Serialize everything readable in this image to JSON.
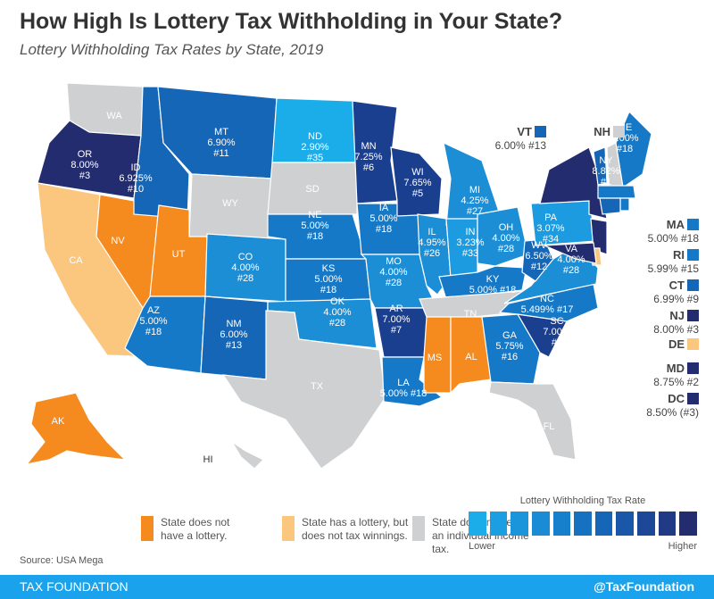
{
  "header": {
    "title": "How High Is Lottery Tax Withholding in Your State?",
    "subtitle": "Lottery Withholding Tax Rates by State, 2019"
  },
  "colors": {
    "no_lottery": "#f58a1f",
    "no_tax": "#fbc77f",
    "no_income_tax": "#cfd0d2",
    "tiers": [
      "#1badea",
      "#1d9be0",
      "#1b8ed6",
      "#1679c7",
      "#1566b6",
      "#1b3f8f",
      "#232c6e"
    ],
    "footer": "#1aa3ec"
  },
  "states": [
    {
      "code": "WA",
      "category": "no_income_tax"
    },
    {
      "code": "OR",
      "rate": "8.00%",
      "rank": "#3",
      "tier": 6
    },
    {
      "code": "CA",
      "category": "no_tax"
    },
    {
      "code": "NV",
      "category": "no_lottery"
    },
    {
      "code": "ID",
      "rate": "6.925%",
      "rank": "#10",
      "tier": 4
    },
    {
      "code": "MT",
      "rate": "6.90%",
      "rank": "#11",
      "tier": 4
    },
    {
      "code": "WY",
      "category": "no_income_tax"
    },
    {
      "code": "UT",
      "category": "no_lottery"
    },
    {
      "code": "CO",
      "rate": "4.00%",
      "rank": "#28",
      "tier": 2
    },
    {
      "code": "AZ",
      "rate": "5.00%",
      "rank": "#18",
      "tier": 3
    },
    {
      "code": "NM",
      "rate": "6.00%",
      "rank": "#13",
      "tier": 4
    },
    {
      "code": "ND",
      "rate": "2.90%",
      "rank": "#35",
      "tier": 0
    },
    {
      "code": "SD",
      "category": "no_income_tax"
    },
    {
      "code": "NE",
      "rate": "5.00%",
      "rank": "#18",
      "tier": 3
    },
    {
      "code": "KS",
      "rate": "5.00%",
      "rank": "#18",
      "tier": 3
    },
    {
      "code": "OK",
      "rate": "4.00%",
      "rank": "#28",
      "tier": 2
    },
    {
      "code": "TX",
      "category": "no_income_tax"
    },
    {
      "code": "MN",
      "rate": "7.25%",
      "rank": "#6",
      "tier": 5
    },
    {
      "code": "IA",
      "rate": "5.00%",
      "rank": "#18",
      "tier": 3
    },
    {
      "code": "MO",
      "rate": "4.00%",
      "rank": "#28",
      "tier": 2
    },
    {
      "code": "AR",
      "rate": "7.00%",
      "rank": "#7",
      "tier": 5
    },
    {
      "code": "LA",
      "rate": "5.00% #18",
      "tier": 3
    },
    {
      "code": "WI",
      "rate": "7.65%",
      "rank": "#5",
      "tier": 5
    },
    {
      "code": "IL",
      "rate": "4.95%",
      "rank": "#26",
      "tier": 2
    },
    {
      "code": "MI",
      "rate": "4.25%",
      "rank": "#27",
      "tier": 2
    },
    {
      "code": "IN",
      "rate": "3.23%",
      "rank": "#33",
      "tier": 1
    },
    {
      "code": "OH",
      "rate": "4.00%",
      "rank": "#28",
      "tier": 2
    },
    {
      "code": "KY",
      "rate": "5.00% #18",
      "tier": 3
    },
    {
      "code": "TN",
      "category": "no_income_tax"
    },
    {
      "code": "MS",
      "category": "no_lottery"
    },
    {
      "code": "AL",
      "category": "no_lottery"
    },
    {
      "code": "GA",
      "rate": "5.75%",
      "rank": "#16",
      "tier": 3
    },
    {
      "code": "FL",
      "category": "no_income_tax"
    },
    {
      "code": "SC",
      "rate": "7.00%",
      "rank": "#7",
      "tier": 5
    },
    {
      "code": "NC",
      "rate": "5.499% #17",
      "tier": 3
    },
    {
      "code": "VA",
      "rate": "4.00%",
      "rank": "#28",
      "tier": 2
    },
    {
      "code": "WV",
      "rate": "6.50%",
      "rank": "#12",
      "tier": 4
    },
    {
      "code": "PA",
      "rate": "3.07%",
      "rank": "#34",
      "tier": 1
    },
    {
      "code": "NY",
      "rate": "8.82%",
      "rank": "#1",
      "tier": 6
    },
    {
      "code": "ME",
      "rate": "5.00%",
      "rank": "#18",
      "tier": 3
    },
    {
      "code": "AK",
      "category": "no_lottery"
    },
    {
      "code": "HI",
      "category": "no_income_tax"
    }
  ],
  "small_states": [
    {
      "code": "VT",
      "value": "6.00% #13",
      "tier": 4
    },
    {
      "code": "NH",
      "category": "no_income_tax"
    },
    {
      "code": "MA",
      "value": "5.00% #18",
      "tier": 3
    },
    {
      "code": "RI",
      "value": "5.99% #15",
      "tier": 3
    },
    {
      "code": "CT",
      "value": "6.99% #9",
      "tier": 4
    },
    {
      "code": "NJ",
      "value": "8.00% #3",
      "tier": 6
    },
    {
      "code": "DE",
      "category": "no_tax"
    },
    {
      "code": "MD",
      "value": "8.75% #2",
      "tier": 6
    },
    {
      "code": "DC",
      "value": "8.50% (#3)",
      "tier": 6
    }
  ],
  "legend": {
    "no_lottery": "State does not have a lottery.",
    "no_tax": "State has a lottery, but does not tax winnings.",
    "no_income_tax": "State does not levy an individual income tax.",
    "scale_title": "Lottery Withholding Tax Rate",
    "scale_steps": 11,
    "lower": "Lower",
    "higher": "Higher"
  },
  "source": "Source: USA Mega",
  "footer": {
    "brand": "TAX FOUNDATION",
    "handle": "@TaxFoundation"
  }
}
